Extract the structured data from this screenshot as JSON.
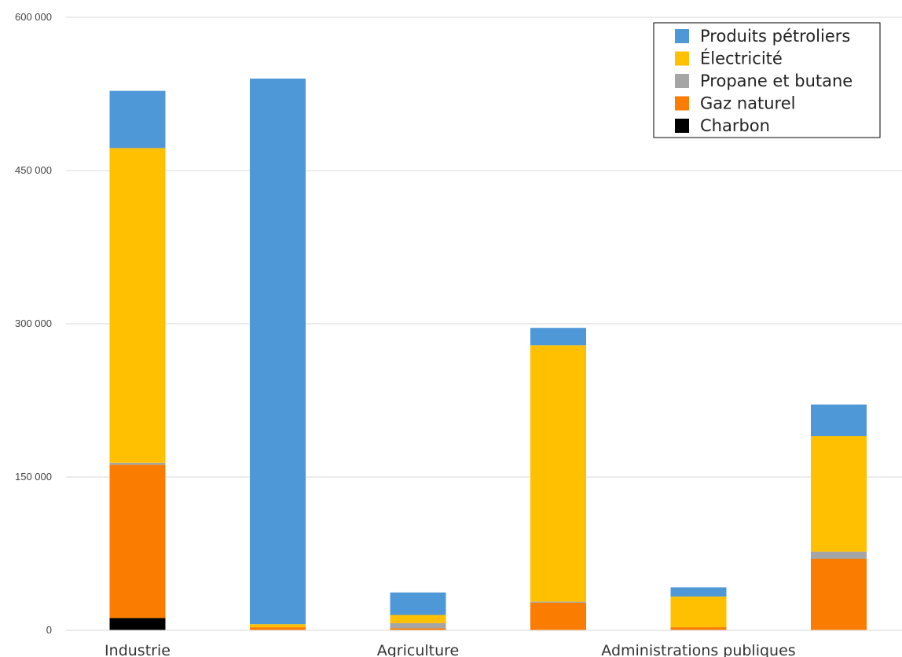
{
  "chart_data": {
    "type": "bar",
    "stacked": true,
    "categories": [
      "Industrie",
      "",
      "Agriculture",
      "",
      "Administrations publiques",
      ""
    ],
    "category_labels_shown": [
      "Industrie",
      "Agriculture",
      "Administrations publiques"
    ],
    "ylim": [
      0,
      600000
    ],
    "yticks": [
      "0",
      "150 000",
      "300 000",
      "450 000",
      "600 000"
    ],
    "ytick_values": [
      0,
      150000,
      300000,
      450000,
      600000
    ],
    "grid": true,
    "legend_position": "top-right",
    "series": [
      {
        "name": "Charbon",
        "color": "#000000",
        "values": [
          12000,
          0,
          0,
          0,
          0,
          0
        ]
      },
      {
        "name": "Gaz naturel",
        "color": "#fa7c00",
        "values": [
          150000,
          3000,
          2000,
          27000,
          3000,
          70000
        ]
      },
      {
        "name": "Propane et butane",
        "color": "#a5a5a5",
        "values": [
          2000,
          0,
          5000,
          1000,
          0,
          7000
        ]
      },
      {
        "name": "Électricité",
        "color": "#fec000",
        "values": [
          308000,
          3000,
          8000,
          251000,
          30000,
          113000
        ]
      },
      {
        "name": "Produits pétroliers",
        "color": "#4e98d8",
        "values": [
          56000,
          534000,
          22000,
          17000,
          9000,
          31000
        ]
      }
    ],
    "legend_order": [
      "Produits pétroliers",
      "Électricité",
      "Propane et butane",
      "Gaz naturel",
      "Charbon"
    ]
  }
}
